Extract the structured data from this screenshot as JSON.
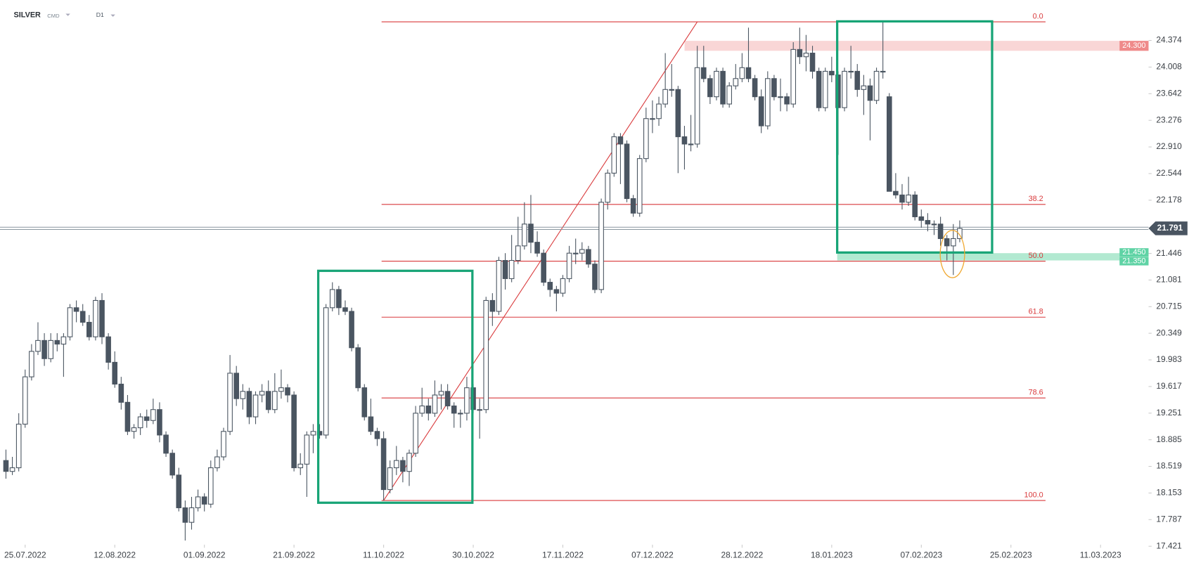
{
  "header": {
    "symbol": "SILVER",
    "market": "CMD",
    "interval": "D1"
  },
  "chart_data": {
    "type": "candlestick",
    "colors": {
      "up": "#ffffff",
      "down": "#4a5561",
      "outline": "#4a5561",
      "fib": "#d9393b",
      "box": "#17a476",
      "last": "#4a5561"
    },
    "ylim": [
      17.17,
      24.93
    ],
    "xlim": [
      -0.93,
      178.5
    ],
    "yticks": [
      24.374,
      24.008,
      23.642,
      23.276,
      {
        "value": 22.91,
        "label": "22.910"
      },
      22.544,
      22.178,
      21.446,
      21.081,
      20.715,
      20.349,
      19.983,
      19.617,
      19.251,
      18.885,
      18.519,
      18.153,
      17.787,
      17.421
    ],
    "xticks": [
      {
        "value": 3,
        "label": "25.07.2022"
      },
      {
        "value": 17,
        "label": "12.08.2022"
      },
      {
        "value": 31,
        "label": "01.09.2022"
      },
      {
        "value": 45,
        "label": "21.09.2022"
      },
      {
        "value": 59,
        "label": "11.10.2022"
      },
      {
        "value": 73,
        "label": "30.10.2022"
      },
      {
        "value": 87,
        "label": "17.11.2022"
      },
      {
        "value": 101,
        "label": "07.12.2022"
      },
      {
        "value": 115,
        "label": "28.12.2022"
      },
      {
        "value": 129,
        "label": "18.01.2023"
      },
      {
        "value": 143,
        "label": "07.02.2023"
      },
      {
        "value": 157,
        "label": "25.02.2023"
      },
      {
        "value": 171,
        "label": "11.03.2023"
      }
    ],
    "ohlc": [
      [
        18.6,
        18.75,
        18.35,
        18.45
      ],
      [
        18.45,
        18.65,
        18.4,
        18.5
      ],
      [
        18.5,
        19.25,
        18.45,
        19.1
      ],
      [
        19.1,
        19.85,
        19.05,
        19.75
      ],
      [
        19.75,
        20.2,
        19.7,
        20.1
      ],
      [
        20.1,
        20.5,
        20.05,
        20.25
      ],
      [
        20.25,
        20.35,
        19.9,
        20.0
      ],
      [
        20.0,
        20.35,
        19.95,
        20.25
      ],
      [
        20.25,
        20.35,
        20.1,
        20.2
      ],
      [
        20.2,
        20.35,
        19.75,
        20.3
      ],
      [
        20.3,
        20.75,
        20.25,
        20.7
      ],
      [
        20.7,
        20.8,
        20.5,
        20.65
      ],
      [
        20.65,
        20.75,
        20.45,
        20.5
      ],
      [
        20.5,
        20.6,
        20.25,
        20.3
      ],
      [
        20.3,
        20.85,
        20.25,
        20.8
      ],
      [
        20.8,
        20.9,
        20.2,
        20.3
      ],
      [
        20.3,
        20.35,
        19.85,
        19.95
      ],
      [
        19.95,
        20.1,
        19.6,
        19.65
      ],
      [
        19.65,
        19.75,
        19.3,
        19.4
      ],
      [
        19.4,
        19.5,
        18.95,
        19.0
      ],
      [
        19.0,
        19.1,
        18.9,
        19.05
      ],
      [
        19.05,
        19.25,
        18.95,
        19.2
      ],
      [
        19.2,
        19.3,
        19.05,
        19.15
      ],
      [
        19.15,
        19.45,
        19.1,
        19.3
      ],
      [
        19.3,
        19.4,
        18.85,
        18.95
      ],
      [
        18.95,
        19.0,
        18.65,
        18.7
      ],
      [
        18.7,
        18.75,
        18.35,
        18.4
      ],
      [
        18.4,
        18.5,
        17.9,
        17.95
      ],
      [
        17.95,
        18.05,
        17.5,
        17.75
      ],
      [
        17.75,
        18.1,
        17.65,
        17.95
      ],
      [
        17.95,
        18.2,
        17.9,
        18.1
      ],
      [
        18.1,
        18.15,
        17.9,
        18.0
      ],
      [
        18.0,
        18.6,
        17.95,
        18.5
      ],
      [
        18.5,
        18.75,
        18.45,
        18.65
      ],
      [
        18.65,
        19.05,
        18.6,
        19.0
      ],
      [
        19.0,
        20.05,
        18.95,
        19.8
      ],
      [
        19.8,
        19.9,
        19.35,
        19.45
      ],
      [
        19.45,
        19.65,
        19.3,
        19.55
      ],
      [
        19.55,
        19.6,
        19.1,
        19.2
      ],
      [
        19.2,
        19.55,
        19.1,
        19.5
      ],
      [
        19.5,
        19.65,
        19.4,
        19.55
      ],
      [
        19.55,
        19.7,
        19.25,
        19.3
      ],
      [
        19.3,
        19.8,
        19.25,
        19.55
      ],
      [
        19.55,
        19.85,
        19.45,
        19.6
      ],
      [
        19.6,
        19.65,
        19.4,
        19.5
      ],
      [
        19.5,
        19.55,
        18.45,
        18.5
      ],
      [
        18.5,
        18.7,
        18.4,
        18.55
      ],
      [
        18.55,
        19.0,
        18.1,
        18.95
      ],
      [
        18.95,
        19.1,
        18.7,
        19.0
      ],
      [
        19.0,
        19.1,
        18.9,
        18.95
      ],
      [
        18.95,
        20.75,
        18.9,
        20.7
      ],
      [
        20.7,
        21.05,
        20.65,
        20.95
      ],
      [
        20.95,
        21.0,
        20.6,
        20.7
      ],
      [
        20.7,
        20.8,
        20.6,
        20.65
      ],
      [
        20.65,
        20.7,
        20.1,
        20.15
      ],
      [
        20.15,
        20.2,
        19.55,
        19.6
      ],
      [
        19.6,
        19.65,
        19.15,
        19.2
      ],
      [
        19.2,
        19.45,
        18.95,
        19.0
      ],
      [
        19.0,
        19.05,
        18.8,
        18.9
      ],
      [
        18.9,
        19.0,
        18.05,
        18.2
      ],
      [
        18.2,
        18.6,
        18.15,
        18.5
      ],
      [
        18.5,
        18.8,
        18.4,
        18.6
      ],
      [
        18.6,
        18.65,
        18.3,
        18.45
      ],
      [
        18.45,
        18.75,
        18.25,
        18.7
      ],
      [
        18.7,
        19.35,
        18.65,
        19.25
      ],
      [
        19.25,
        19.6,
        19.2,
        19.35
      ],
      [
        19.35,
        19.45,
        19.15,
        19.25
      ],
      [
        19.25,
        19.7,
        19.2,
        19.5
      ],
      [
        19.5,
        19.65,
        19.3,
        19.55
      ],
      [
        19.55,
        19.65,
        19.3,
        19.35
      ],
      [
        19.35,
        19.4,
        19.05,
        19.25
      ],
      [
        19.25,
        19.3,
        19.05,
        19.25
      ],
      [
        19.25,
        19.75,
        19.15,
        19.6
      ],
      [
        19.6,
        19.65,
        19.25,
        19.3
      ],
      [
        19.3,
        19.45,
        18.9,
        19.3
      ],
      [
        19.3,
        20.85,
        19.25,
        20.8
      ],
      [
        20.8,
        20.9,
        20.45,
        20.65
      ],
      [
        20.65,
        21.4,
        20.6,
        21.35
      ],
      [
        21.35,
        21.45,
        20.95,
        21.1
      ],
      [
        21.1,
        21.7,
        21.05,
        21.35
      ],
      [
        21.35,
        21.95,
        21.3,
        21.55
      ],
      [
        21.55,
        22.15,
        21.5,
        21.85
      ],
      [
        21.85,
        22.25,
        21.45,
        21.6
      ],
      [
        21.6,
        21.75,
        21.4,
        21.45
      ],
      [
        21.45,
        21.5,
        21.0,
        21.05
      ],
      [
        21.05,
        21.1,
        20.85,
        20.95
      ],
      [
        20.95,
        21.0,
        20.65,
        20.9
      ],
      [
        20.9,
        21.15,
        20.85,
        21.1
      ],
      [
        21.1,
        21.55,
        21.05,
        21.45
      ],
      [
        21.45,
        21.65,
        21.3,
        21.45
      ],
      [
        21.45,
        21.6,
        21.35,
        21.5
      ],
      [
        21.5,
        21.55,
        21.25,
        21.3
      ],
      [
        21.3,
        21.35,
        20.9,
        20.95
      ],
      [
        20.95,
        22.2,
        20.9,
        22.15
      ],
      [
        22.15,
        22.6,
        22.05,
        22.55
      ],
      [
        22.55,
        23.1,
        22.5,
        23.05
      ],
      [
        23.05,
        23.1,
        22.4,
        22.95
      ],
      [
        22.95,
        23.0,
        22.15,
        22.2
      ],
      [
        22.2,
        22.25,
        21.95,
        22.0
      ],
      [
        22.0,
        22.8,
        21.95,
        22.75
      ],
      [
        22.75,
        23.45,
        22.7,
        23.3
      ],
      [
        23.3,
        23.55,
        23.1,
        23.3
      ],
      [
        23.3,
        23.6,
        23.2,
        23.5
      ],
      [
        23.5,
        24.2,
        23.45,
        23.7
      ],
      [
        23.7,
        24.05,
        23.6,
        23.7
      ],
      [
        23.7,
        23.75,
        22.55,
        23.05
      ],
      [
        23.05,
        23.2,
        22.6,
        22.95
      ],
      [
        22.95,
        23.35,
        22.85,
        22.95
      ],
      [
        22.95,
        24.3,
        22.9,
        24.0
      ],
      [
        24.0,
        24.3,
        23.8,
        23.85
      ],
      [
        23.85,
        23.9,
        23.5,
        23.6
      ],
      [
        23.6,
        24.0,
        23.55,
        23.95
      ],
      [
        23.95,
        24.0,
        23.45,
        23.5
      ],
      [
        23.5,
        23.8,
        23.45,
        23.75
      ],
      [
        23.75,
        24.05,
        23.7,
        23.85
      ],
      [
        23.85,
        24.2,
        23.8,
        24.0
      ],
      [
        24.0,
        24.55,
        23.8,
        23.85
      ],
      [
        23.85,
        23.9,
        23.55,
        23.6
      ],
      [
        23.6,
        23.7,
        23.1,
        23.2
      ],
      [
        23.2,
        23.95,
        23.15,
        23.85
      ],
      [
        23.85,
        23.9,
        23.55,
        23.6
      ],
      [
        23.6,
        23.85,
        23.4,
        23.6
      ],
      [
        23.6,
        23.65,
        23.4,
        23.5
      ],
      [
        23.5,
        24.35,
        23.45,
        24.25
      ],
      [
        24.25,
        24.55,
        24.05,
        24.15
      ],
      [
        24.15,
        24.45,
        23.95,
        24.2
      ],
      [
        24.2,
        24.3,
        23.85,
        23.95
      ],
      [
        23.95,
        24.0,
        23.4,
        23.45
      ],
      [
        23.45,
        24.0,
        23.4,
        23.95
      ],
      [
        23.95,
        24.15,
        23.8,
        23.9
      ],
      [
        23.9,
        23.95,
        22.8,
        23.45
      ],
      [
        23.45,
        24.0,
        23.4,
        23.95
      ],
      [
        23.95,
        24.3,
        23.85,
        23.95
      ],
      [
        23.95,
        24.05,
        23.6,
        23.7
      ],
      [
        23.7,
        23.9,
        23.35,
        23.75
      ],
      [
        23.75,
        23.85,
        23.0,
        23.55
      ],
      [
        23.55,
        24.0,
        23.5,
        23.95
      ],
      [
        23.95,
        24.63,
        23.85,
        23.95
      ],
      [
        23.6,
        23.65,
        22.3,
        22.3
      ],
      [
        22.3,
        22.55,
        22.2,
        22.25
      ],
      [
        22.25,
        22.4,
        22.05,
        22.15
      ],
      [
        22.15,
        22.5,
        22.1,
        22.25
      ],
      [
        22.25,
        22.3,
        21.9,
        21.95
      ],
      [
        21.95,
        22.05,
        21.8,
        21.9
      ],
      [
        21.9,
        22.0,
        21.75,
        21.85
      ],
      [
        21.85,
        21.9,
        21.7,
        21.85
      ],
      [
        21.85,
        21.95,
        21.55,
        21.65
      ],
      [
        21.65,
        21.7,
        21.35,
        21.55
      ],
      [
        21.55,
        21.85,
        21.15,
        21.65
      ],
      [
        21.65,
        21.9,
        21.6,
        21.79
      ]
    ],
    "fib": {
      "levels": [
        {
          "label": "0.0",
          "price": 24.63
        },
        {
          "label": "38.2",
          "price": 22.12
        },
        {
          "label": "50.0",
          "price": 21.34
        },
        {
          "label": "61.8",
          "price": 20.57
        },
        {
          "label": "78.6",
          "price": 19.46
        },
        {
          "label": "100.0",
          "price": 18.05
        }
      ]
    },
    "resistance": {
      "value": 24.3,
      "label": "24.300",
      "color": "#f6c4c4",
      "tag_color": "#ef8a8a"
    },
    "support": {
      "color": "#9fe3c6",
      "tag_color": "#5fd3a5",
      "levels": [
        {
          "value": 21.45,
          "label": "21.450"
        },
        {
          "value": 21.35,
          "label": "21.350"
        }
      ]
    },
    "last_price": 21.791
  }
}
